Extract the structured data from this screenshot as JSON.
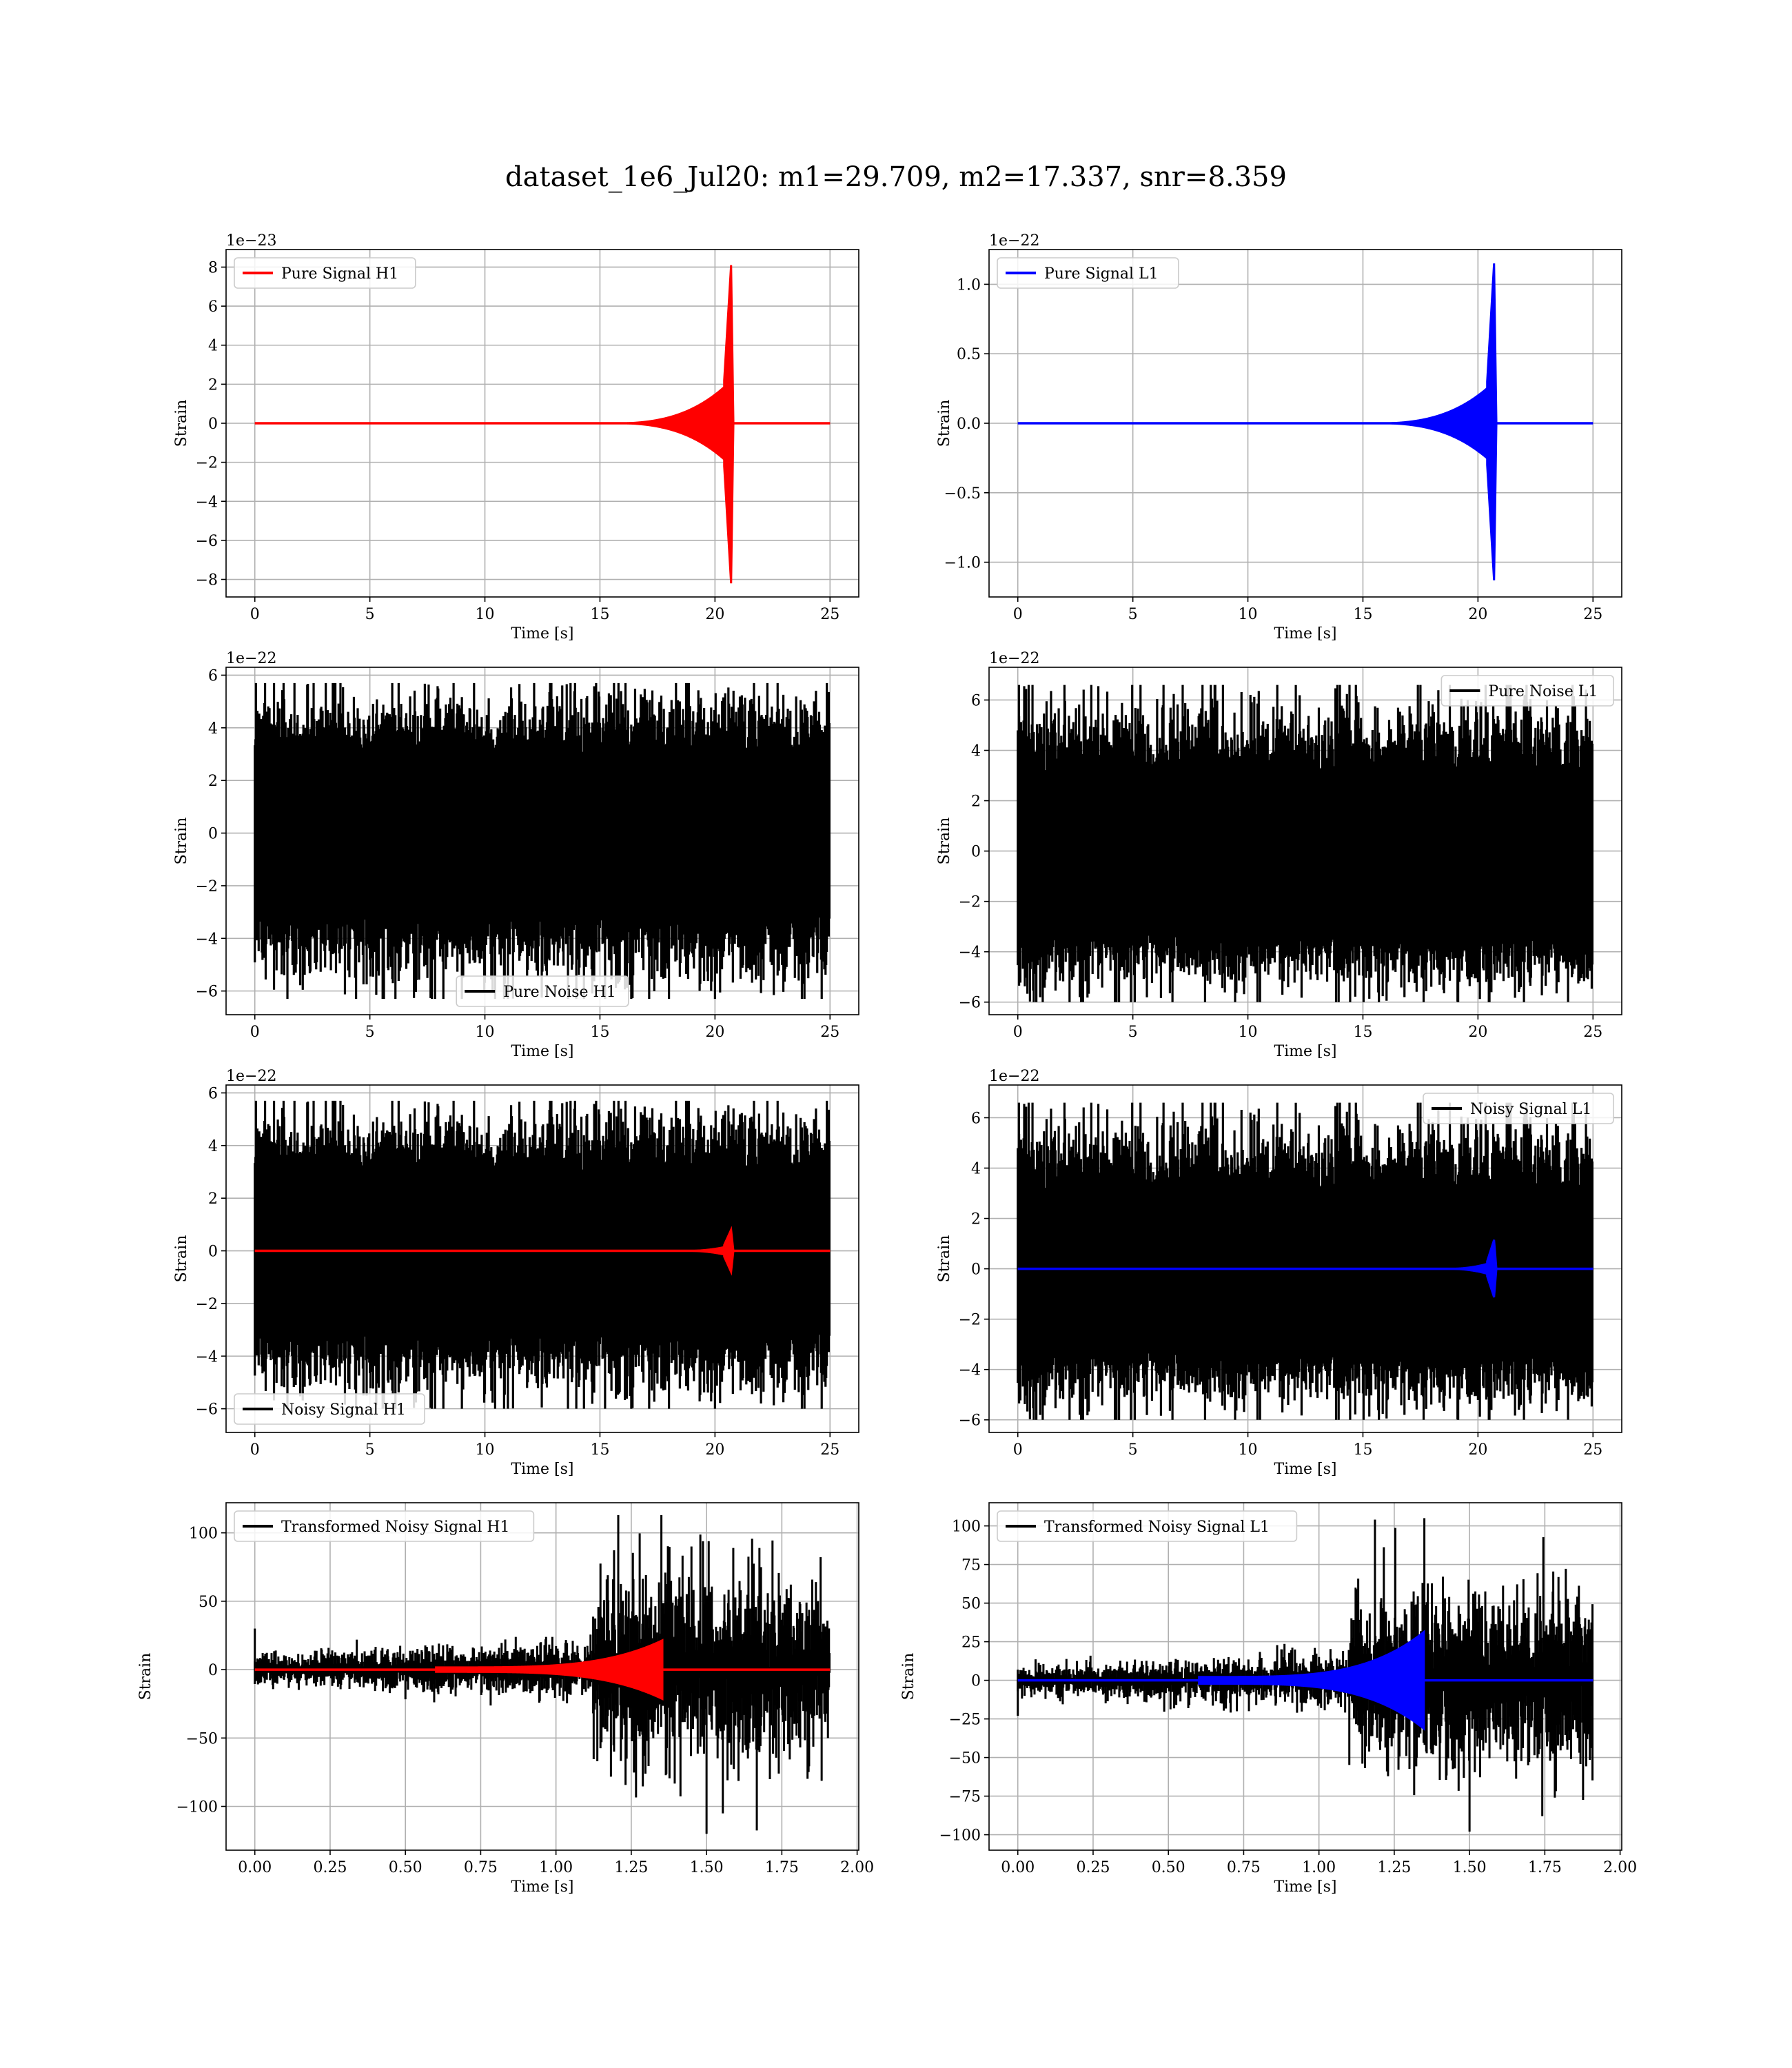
{
  "figure": {
    "title": "dataset_1e6_Jul20: m1=29.709, m2=17.337, snr=8.359"
  },
  "chart_data": [
    {
      "id": "pure-signal-h1",
      "type": "line",
      "kind": "chirp",
      "xlabel": "Time [s]",
      "ylabel": "Strain",
      "offset_text": "1e−23",
      "xlim": [
        -1.25,
        26.25
      ],
      "ylim": [
        -8.9,
        8.9
      ],
      "xticks": [
        0,
        5,
        10,
        15,
        20,
        25
      ],
      "xtick_labels": [
        "0",
        "5",
        "10",
        "15",
        "20",
        "25"
      ],
      "yticks": [
        -8,
        -6,
        -4,
        -2,
        0,
        2,
        4,
        6,
        8
      ],
      "ytick_labels": [
        "−8",
        "−6",
        "−4",
        "−2",
        "0",
        "2",
        "4",
        "6",
        "8"
      ],
      "legend": "upper left",
      "series": [
        {
          "name": "Pure Signal H1",
          "color": "#ff0000",
          "t_end": 25,
          "merger": 20.7,
          "peak": 8.1,
          "trough": -8.2,
          "pre_amp": 2.2,
          "onset": 15
        }
      ]
    },
    {
      "id": "pure-signal-l1",
      "type": "line",
      "kind": "chirp",
      "xlabel": "Time [s]",
      "ylabel": "Strain",
      "offset_text": "1e−22",
      "xlim": [
        -1.25,
        26.25
      ],
      "ylim": [
        -1.25,
        1.25
      ],
      "xticks": [
        0,
        5,
        10,
        15,
        20,
        25
      ],
      "xtick_labels": [
        "0",
        "5",
        "10",
        "15",
        "20",
        "25"
      ],
      "yticks": [
        -1.0,
        -0.5,
        0.0,
        0.5,
        1.0
      ],
      "ytick_labels": [
        "−1.0",
        "−0.5",
        "0.0",
        "0.5",
        "1.0"
      ],
      "legend": "upper left",
      "series": [
        {
          "name": "Pure Signal L1",
          "color": "#0000ff",
          "t_end": 25,
          "merger": 20.7,
          "peak": 1.15,
          "trough": -1.13,
          "pre_amp": 0.3,
          "onset": 15
        }
      ]
    },
    {
      "id": "pure-noise-h1",
      "type": "line",
      "kind": "noise",
      "xlabel": "Time [s]",
      "ylabel": "Strain",
      "offset_text": "1e−22",
      "xlim": [
        -1.25,
        26.25
      ],
      "ylim": [
        -6.9,
        6.3
      ],
      "xticks": [
        0,
        5,
        10,
        15,
        20,
        25
      ],
      "xtick_labels": [
        "0",
        "5",
        "10",
        "15",
        "20",
        "25"
      ],
      "yticks": [
        -6,
        -4,
        -2,
        0,
        2,
        4,
        6
      ],
      "ytick_labels": [
        "−6",
        "−4",
        "−2",
        "0",
        "2",
        "4",
        "6"
      ],
      "legend": "lower center",
      "series": [
        {
          "name": "Pure Noise H1",
          "color": "#000000",
          "t_end": 25,
          "band": [
            -3.0,
            3.0
          ],
          "max": 5.7,
          "min": -6.3,
          "seed": 11
        }
      ]
    },
    {
      "id": "pure-noise-l1",
      "type": "line",
      "kind": "noise",
      "xlabel": "Time [s]",
      "ylabel": "Strain",
      "offset_text": "1e−22",
      "xlim": [
        -1.25,
        26.25
      ],
      "ylim": [
        -6.5,
        7.3
      ],
      "xticks": [
        0,
        5,
        10,
        15,
        20,
        25
      ],
      "xtick_labels": [
        "0",
        "5",
        "10",
        "15",
        "20",
        "25"
      ],
      "yticks": [
        -6,
        -4,
        -2,
        0,
        2,
        4,
        6
      ],
      "ytick_labels": [
        "−6",
        "−4",
        "−2",
        "0",
        "2",
        "4",
        "6"
      ],
      "legend": "upper right",
      "series": [
        {
          "name": "Pure Noise L1",
          "color": "#000000",
          "t_end": 25,
          "band": [
            -3.2,
            3.0
          ],
          "max": 6.6,
          "min": -6.0,
          "seed": 23
        }
      ]
    },
    {
      "id": "noisy-signal-h1",
      "type": "line",
      "kind": "noisy",
      "xlabel": "Time [s]",
      "ylabel": "Strain",
      "offset_text": "1e−22",
      "xlim": [
        -1.25,
        26.25
      ],
      "ylim": [
        -6.9,
        6.3
      ],
      "xticks": [
        0,
        5,
        10,
        15,
        20,
        25
      ],
      "xtick_labels": [
        "0",
        "5",
        "10",
        "15",
        "20",
        "25"
      ],
      "yticks": [
        -6,
        -4,
        -2,
        0,
        2,
        4,
        6
      ],
      "ytick_labels": [
        "−6",
        "−4",
        "−2",
        "0",
        "2",
        "4",
        "6"
      ],
      "legend": "lower left",
      "series": [
        {
          "name": "Noisy Signal H1",
          "color": "#000000",
          "t_end": 25,
          "band": [
            -3.0,
            3.0
          ],
          "max": 5.7,
          "min": -6.0,
          "seed": 11
        },
        {
          "color": "#ff0000",
          "t_end": 25,
          "merger": 20.7,
          "peak": 0.8,
          "trough": -0.8,
          "pre_amp": 0.22,
          "onset": 18
        }
      ]
    },
    {
      "id": "noisy-signal-l1",
      "type": "line",
      "kind": "noisy",
      "xlabel": "Time [s]",
      "ylabel": "Strain",
      "offset_text": "1e−22",
      "xlim": [
        -1.25,
        26.25
      ],
      "ylim": [
        -6.5,
        7.3
      ],
      "xticks": [
        0,
        5,
        10,
        15,
        20,
        25
      ],
      "xtick_labels": [
        "0",
        "5",
        "10",
        "15",
        "20",
        "25"
      ],
      "yticks": [
        -6,
        -4,
        -2,
        0,
        2,
        4,
        6
      ],
      "ytick_labels": [
        "−6",
        "−4",
        "−2",
        "0",
        "2",
        "4",
        "6"
      ],
      "legend": "upper right",
      "series": [
        {
          "name": "Noisy Signal L1",
          "color": "#000000",
          "t_end": 25,
          "band": [
            -3.2,
            3.0
          ],
          "max": 6.6,
          "min": -6.0,
          "seed": 23
        },
        {
          "color": "#0000ff",
          "t_end": 25,
          "merger": 20.7,
          "peak": 1.15,
          "trough": -1.13,
          "pre_amp": 0.3,
          "onset": 18
        }
      ]
    },
    {
      "id": "transformed-noisy-signal-h1",
      "type": "line",
      "kind": "transformed",
      "xlabel": "Time [s]",
      "ylabel": "Strain",
      "offset_text": "",
      "xlim": [
        -0.0955,
        2.0055
      ],
      "ylim": [
        -132,
        122
      ],
      "xticks": [
        0.0,
        0.25,
        0.5,
        0.75,
        1.0,
        1.25,
        1.5,
        1.75,
        2.0
      ],
      "xtick_labels": [
        "0.00",
        "0.25",
        "0.50",
        "0.75",
        "1.00",
        "1.25",
        "1.50",
        "1.75",
        "2.00"
      ],
      "yticks": [
        -100,
        -50,
        0,
        50,
        100
      ],
      "ytick_labels": [
        "−100",
        "−50",
        "0",
        "50",
        "100"
      ],
      "legend": "upper left",
      "series": [
        {
          "name": "Transformed Noisy Signal H1",
          "color": "#000000",
          "t_end": 1.91,
          "step_t": 1.12,
          "low_amp": 8,
          "high_amp": 35,
          "max": 113,
          "min": -120,
          "start_spike": 30,
          "seed": 37
        },
        {
          "color": "#ff0000",
          "t_end": 1.91,
          "merger": 1.355,
          "peak": 22,
          "trough": -22,
          "pre_amp": 2,
          "onset": 0.6
        }
      ]
    },
    {
      "id": "transformed-noisy-signal-l1",
      "type": "line",
      "kind": "transformed",
      "xlabel": "Time [s]",
      "ylabel": "Strain",
      "offset_text": "",
      "xlim": [
        -0.0955,
        2.0055
      ],
      "ylim": [
        -110,
        115
      ],
      "xticks": [
        0.0,
        0.25,
        0.5,
        0.75,
        1.0,
        1.25,
        1.5,
        1.75,
        2.0
      ],
      "xtick_labels": [
        "0.00",
        "0.25",
        "0.50",
        "0.75",
        "1.00",
        "1.25",
        "1.50",
        "1.75",
        "2.00"
      ],
      "yticks": [
        -100,
        -75,
        -50,
        -25,
        0,
        25,
        50,
        75,
        100
      ],
      "ytick_labels": [
        "−100",
        "−75",
        "−50",
        "−25",
        "0",
        "25",
        "50",
        "75",
        "100"
      ],
      "legend": "upper left",
      "series": [
        {
          "name": "Transformed Noisy Signal L1",
          "color": "#000000",
          "t_end": 1.91,
          "step_t": 1.1,
          "low_amp": 7,
          "high_amp": 30,
          "max": 105,
          "min": -98,
          "start_spike": -23,
          "seed": 53
        },
        {
          "color": "#0000ff",
          "t_end": 1.91,
          "merger": 1.35,
          "peak": 32,
          "trough": -32,
          "pre_amp": 2.5,
          "onset": 0.6
        }
      ]
    }
  ]
}
